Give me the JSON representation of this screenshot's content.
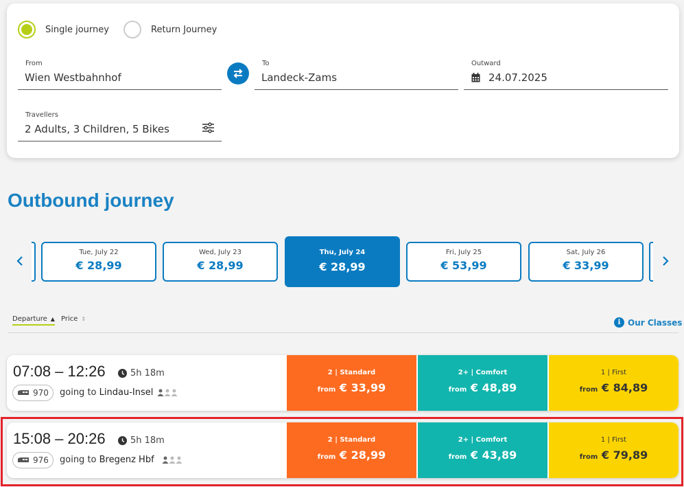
{
  "search": {
    "trip_type": {
      "single_label": "Single journey",
      "return_label": "Return Journey",
      "selected": "single"
    },
    "from": {
      "label": "From",
      "value": "Wien Westbahnhof"
    },
    "to": {
      "label": "To",
      "value": "Landeck-Zams"
    },
    "outward": {
      "label": "Outward",
      "value": "24.07.2025"
    },
    "travellers": {
      "label": "Travellers",
      "value": "2 Adults, 3 Children, 5 Bikes"
    },
    "swap_icon": "swap-arrows-icon"
  },
  "results": {
    "title": "Outbound journey",
    "dates": [
      {
        "day": "Tue, July 22",
        "price": "€ 28,99"
      },
      {
        "day": "Wed, July 23",
        "price": "€ 28,99"
      },
      {
        "day": "Thu, July 24",
        "price": "€ 28,99",
        "active": true
      },
      {
        "day": "Fri, July 25",
        "price": "€ 53,99"
      },
      {
        "day": "Sat, July 26",
        "price": "€ 33,99"
      }
    ],
    "sort": {
      "departure_label": "Departure",
      "price_label": "Price",
      "active": "departure"
    },
    "classes_link": "Our Classes",
    "connections": [
      {
        "times": "07:08 – 12:26",
        "duration": "5h 18m",
        "train": "970",
        "going_prefix": "going to",
        "destination": "Lindau-Insel",
        "fares": [
          {
            "class": "2 | Standard",
            "from": "from",
            "price": "€ 33,99"
          },
          {
            "class": "2+ | Comfort",
            "from": "from",
            "price": "€ 48,89"
          },
          {
            "class": "1 | First",
            "from": "from",
            "price": "€ 84,89"
          }
        ]
      },
      {
        "times": "15:08 – 20:26",
        "duration": "5h 18m",
        "train": "976",
        "going_prefix": "going to",
        "destination": "Bregenz Hbf",
        "fares": [
          {
            "class": "2 | Standard",
            "from": "from",
            "price": "€ 28,99"
          },
          {
            "class": "2+ | Comfort",
            "from": "from",
            "price": "€ 43,89"
          },
          {
            "class": "1 | First",
            "from": "from",
            "price": "€ 79,89"
          }
        ],
        "highlighted": true
      }
    ]
  },
  "colors": {
    "brand_blue": "#0a7bc1",
    "accent_green": "#b6cf16",
    "standard": "#fd6b21",
    "comfort": "#12b5ad",
    "first": "#fbd400",
    "highlight": "#e4222a"
  }
}
